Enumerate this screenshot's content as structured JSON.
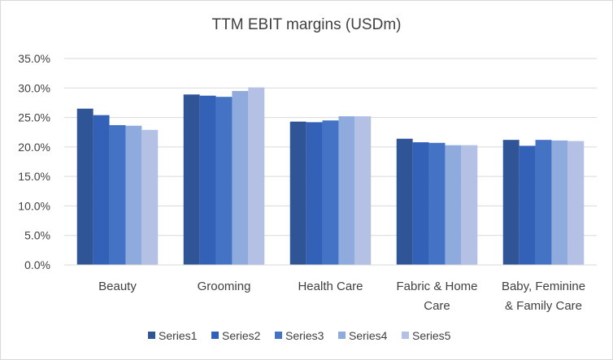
{
  "chart_data": {
    "type": "bar",
    "title": "TTM EBIT margins (USDm)",
    "categories": [
      "Beauty",
      "Grooming",
      "Health Care",
      "Fabric & Home Care",
      "Baby, Feminine & Family Care"
    ],
    "category_lines": [
      [
        "Beauty"
      ],
      [
        "Grooming"
      ],
      [
        "Health Care"
      ],
      [
        "Fabric & Home",
        "Care"
      ],
      [
        "Baby, Feminine",
        "& Family Care"
      ]
    ],
    "series": [
      {
        "name": "Series1",
        "color": "#2f5597",
        "values": [
          0.265,
          0.289,
          0.243,
          0.214,
          0.212
        ]
      },
      {
        "name": "Series2",
        "color": "#3461b8",
        "values": [
          0.254,
          0.287,
          0.242,
          0.208,
          0.202
        ]
      },
      {
        "name": "Series3",
        "color": "#4472c4",
        "values": [
          0.237,
          0.285,
          0.245,
          0.207,
          0.212
        ]
      },
      {
        "name": "Series4",
        "color": "#8faadc",
        "values": [
          0.236,
          0.295,
          0.252,
          0.203,
          0.211
        ]
      },
      {
        "name": "Series5",
        "color": "#b4c0e4",
        "values": [
          0.229,
          0.301,
          0.252,
          0.203,
          0.21
        ]
      }
    ],
    "yticks": [
      "0.0%",
      "5.0%",
      "10.0%",
      "15.0%",
      "20.0%",
      "25.0%",
      "30.0%",
      "35.0%"
    ],
    "ylim": [
      0,
      0.35
    ],
    "grid": true,
    "legend": "bottom"
  }
}
